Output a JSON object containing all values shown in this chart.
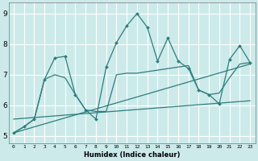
{
  "xlabel": "Humidex (Indice chaleur)",
  "ylabel": "",
  "bg_color": "#cceaea",
  "grid_color": "#ffffff",
  "line_color": "#2e7d7d",
  "xlim": [
    -0.5,
    23.5
  ],
  "ylim": [
    4.75,
    9.35
  ],
  "yticks": [
    5,
    6,
    7,
    8,
    9
  ],
  "xticks": [
    0,
    1,
    2,
    3,
    4,
    5,
    6,
    7,
    8,
    9,
    10,
    11,
    12,
    13,
    14,
    15,
    16,
    17,
    18,
    19,
    20,
    21,
    22,
    23
  ],
  "series1_y": [
    5.1,
    5.3,
    5.55,
    6.85,
    7.55,
    7.6,
    6.35,
    5.85,
    5.55,
    7.25,
    8.05,
    8.6,
    9.0,
    8.55,
    7.45,
    8.2,
    7.45,
    7.2,
    6.5,
    6.35,
    6.05,
    7.5,
    7.95,
    7.4
  ],
  "series2_y": [
    5.1,
    5.3,
    5.55,
    6.85,
    7.0,
    6.9,
    6.35,
    5.85,
    5.8,
    5.8,
    7.0,
    7.05,
    7.05,
    7.1,
    7.15,
    7.2,
    7.25,
    7.3,
    6.5,
    6.35,
    6.4,
    6.9,
    7.35,
    7.4
  ],
  "trend1_x": [
    0,
    23
  ],
  "trend1_y": [
    5.1,
    7.35
  ],
  "trend2_x": [
    0,
    23
  ],
  "trend2_y": [
    5.55,
    6.15
  ]
}
